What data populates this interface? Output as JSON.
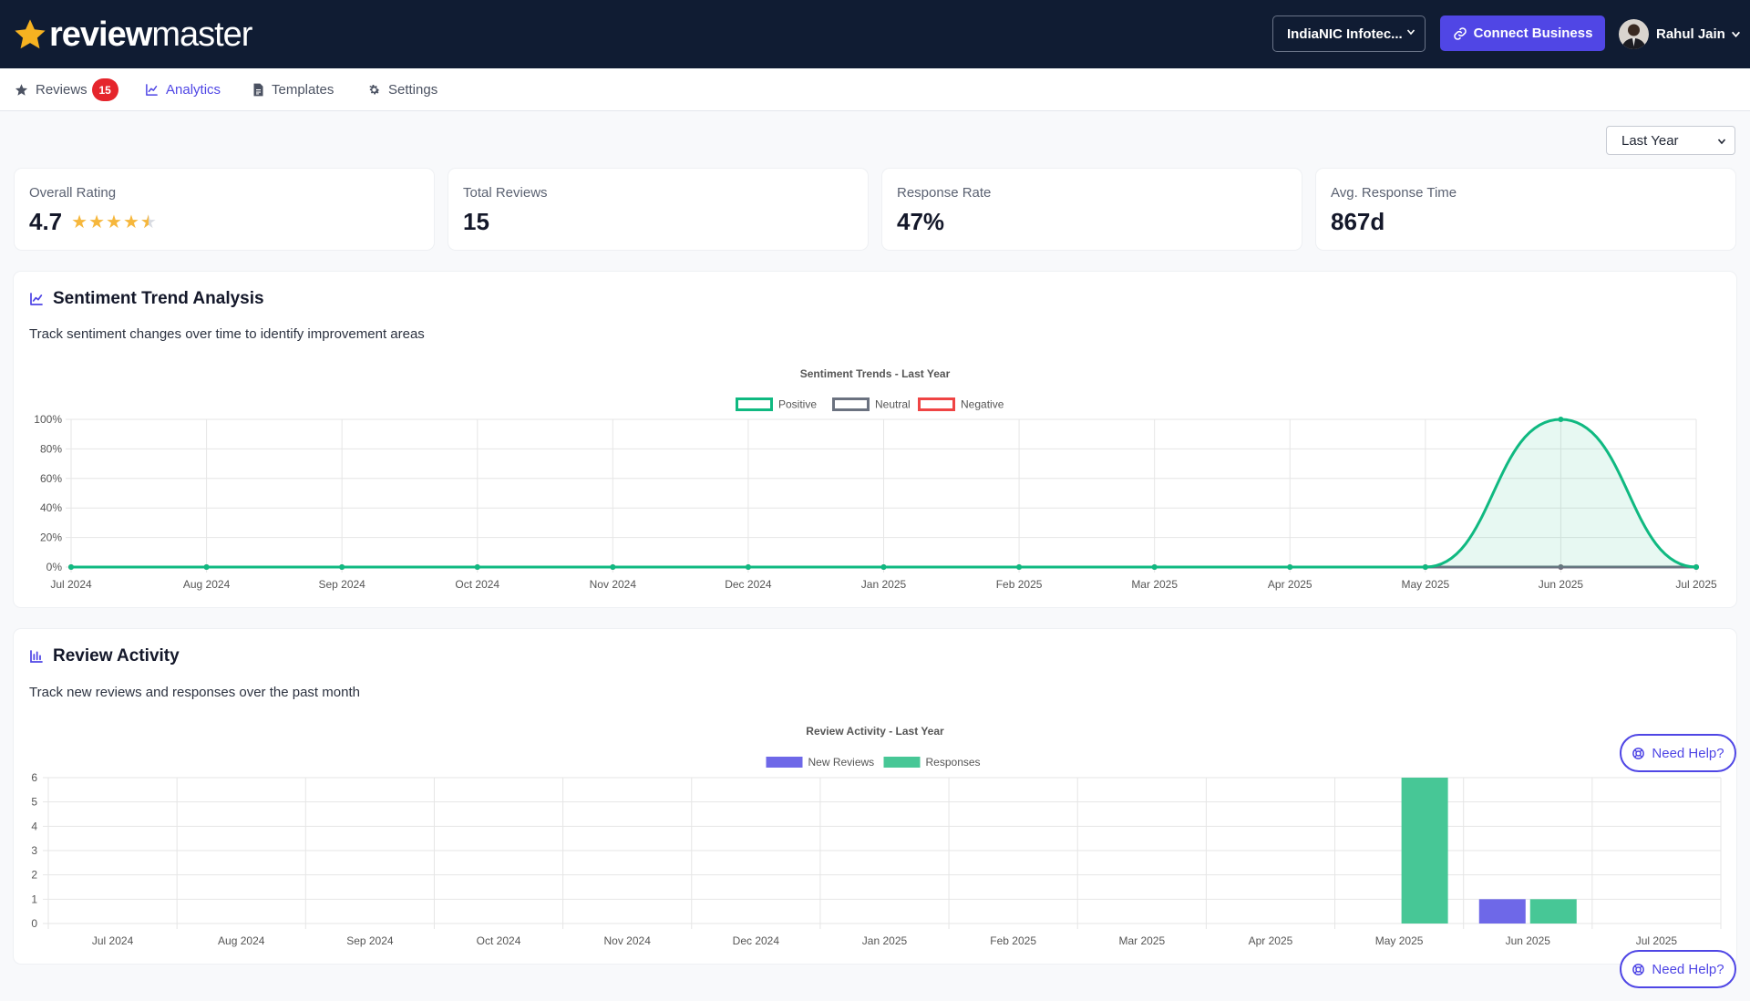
{
  "header": {
    "logo_bold": "review",
    "logo_light": "master",
    "business_select": "IndiaNIC Infotec...",
    "connect_button": "Connect Business",
    "user_name": "Rahul Jain"
  },
  "tabs": [
    {
      "label": "Reviews",
      "badge": "15",
      "icon": "star-icon"
    },
    {
      "label": "Analytics",
      "icon": "line-chart-icon",
      "active": true
    },
    {
      "label": "Templates",
      "icon": "document-icon"
    },
    {
      "label": "Settings",
      "icon": "gear-icon"
    }
  ],
  "period_select": "Last Year",
  "stats": [
    {
      "label": "Overall Rating",
      "value": "4.7",
      "rating": 4.7
    },
    {
      "label": "Total Reviews",
      "value": "15"
    },
    {
      "label": "Response Rate",
      "value": "47%"
    },
    {
      "label": "Avg. Response Time",
      "value": "867d"
    }
  ],
  "sentiment": {
    "title": "Sentiment Trend Analysis",
    "description": "Track sentiment changes over time to identify improvement areas"
  },
  "activity": {
    "title": "Review Activity",
    "description": "Track new reviews and responses over the past month"
  },
  "help_button": "Need Help?",
  "colors": {
    "navy": "#101c33",
    "accent": "#5046e5",
    "positive": "#10b981",
    "neutral": "#6b7280",
    "negative": "#ef4444",
    "new_reviews": "#6e68e8",
    "responses": "#47c796"
  },
  "chart_data": [
    {
      "type": "line",
      "title": "Sentiment Trends - Last Year",
      "x": [
        "Jul 2024",
        "Aug 2024",
        "Sep 2024",
        "Oct 2024",
        "Nov 2024",
        "Dec 2024",
        "Jan 2025",
        "Feb 2025",
        "Mar 2025",
        "Apr 2025",
        "May 2025",
        "Jun 2025",
        "Jul 2025"
      ],
      "y_ticks": [
        "0%",
        "20%",
        "40%",
        "60%",
        "80%",
        "100%"
      ],
      "ylim": [
        0,
        100
      ],
      "legend": "top-center",
      "grid": true,
      "series": [
        {
          "name": "Positive",
          "color": "#10b981",
          "fill": true,
          "values": [
            0,
            0,
            0,
            0,
            0,
            0,
            0,
            0,
            0,
            0,
            0,
            100,
            0
          ]
        },
        {
          "name": "Neutral",
          "color": "#6b7280",
          "fill": false,
          "values": [
            0,
            0,
            0,
            0,
            0,
            0,
            0,
            0,
            0,
            0,
            0,
            0,
            0
          ]
        },
        {
          "name": "Negative",
          "color": "#ef4444",
          "fill": false,
          "values": [
            0,
            0,
            0,
            0,
            0,
            0,
            0,
            0,
            0,
            0,
            0,
            0,
            0
          ]
        }
      ]
    },
    {
      "type": "bar",
      "title": "Review Activity - Last Year",
      "categories": [
        "Jul 2024",
        "Aug 2024",
        "Sep 2024",
        "Oct 2024",
        "Nov 2024",
        "Dec 2024",
        "Jan 2025",
        "Feb 2025",
        "Mar 2025",
        "Apr 2025",
        "May 2025",
        "Jun 2025",
        "Jul 2025"
      ],
      "y_ticks": [
        "0",
        "1",
        "2",
        "3",
        "4",
        "5",
        "6"
      ],
      "ylim": [
        0,
        6
      ],
      "legend": "top-center",
      "grid": true,
      "series": [
        {
          "name": "New Reviews",
          "color": "#6e68e8",
          "values": [
            0,
            0,
            0,
            0,
            0,
            0,
            0,
            0,
            0,
            0,
            0,
            1,
            0
          ]
        },
        {
          "name": "Responses",
          "color": "#47c796",
          "values": [
            0,
            0,
            0,
            0,
            0,
            0,
            0,
            0,
            0,
            0,
            6,
            1,
            0
          ]
        }
      ]
    }
  ]
}
